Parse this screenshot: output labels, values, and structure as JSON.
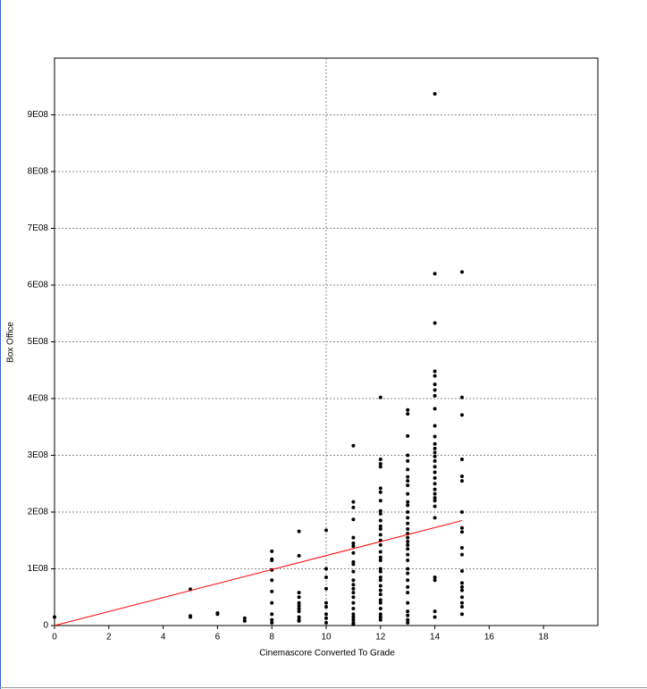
{
  "chart_data": {
    "type": "scatter",
    "xlabel": "Cinemascore Converted To Grade",
    "ylabel": "Box Office",
    "xlim": [
      0,
      20
    ],
    "ylim": [
      0,
      1000000000
    ],
    "xticks": [
      0,
      2,
      4,
      6,
      8,
      10,
      12,
      14,
      16,
      18
    ],
    "yticks": [
      {
        "value": 0,
        "label": "0"
      },
      {
        "value": 100000000,
        "label": "1E08"
      },
      {
        "value": 200000000,
        "label": "2E08"
      },
      {
        "value": 300000000,
        "label": "3E08"
      },
      {
        "value": 400000000,
        "label": "4E08"
      },
      {
        "value": 500000000,
        "label": "5E08"
      },
      {
        "value": 600000000,
        "label": "6E08"
      },
      {
        "value": 700000000,
        "label": "7E08"
      },
      {
        "value": 800000000,
        "label": "8E08"
      },
      {
        "value": 900000000,
        "label": "9E08"
      }
    ],
    "grid": true,
    "vline": 10,
    "color": "#000000",
    "x": [
      0,
      5,
      5,
      5,
      6,
      6,
      7,
      7,
      8,
      8,
      8,
      8,
      8,
      8,
      8,
      8,
      8,
      8,
      9,
      9,
      9,
      9,
      9,
      9,
      9,
      9,
      9,
      9,
      9,
      10,
      10,
      10,
      10,
      10,
      10,
      10,
      10,
      10,
      11,
      11,
      11,
      11,
      11,
      11,
      11,
      11,
      11,
      11,
      11,
      11,
      11,
      11,
      11,
      11,
      11,
      11,
      11,
      11,
      11,
      11,
      11,
      12,
      12,
      12,
      12,
      12,
      12,
      12,
      12,
      12,
      12,
      12,
      12,
      12,
      12,
      12,
      12,
      12,
      12,
      12,
      12,
      12,
      12,
      12,
      12,
      12,
      12,
      12,
      12,
      12,
      12,
      12,
      13,
      13,
      13,
      13,
      13,
      13,
      13,
      13,
      13,
      13,
      13,
      13,
      13,
      13,
      13,
      13,
      13,
      13,
      13,
      13,
      13,
      13,
      13,
      13,
      13,
      13,
      13,
      13,
      13,
      13,
      13,
      13,
      13,
      14,
      14,
      14,
      14,
      14,
      14,
      14,
      14,
      14,
      14,
      14,
      14,
      14,
      14,
      14,
      14,
      14,
      14,
      14,
      14,
      14,
      14,
      14,
      14,
      14,
      14,
      14,
      14,
      14,
      14,
      15,
      15,
      15,
      15,
      15,
      15,
      15,
      15,
      15,
      15,
      15,
      15,
      15,
      15,
      15,
      15,
      15,
      15,
      15
    ],
    "values": [
      15000000.0,
      64000000.0,
      17000000.0,
      15000000.0,
      22000000.0,
      20000000.0,
      13000000.0,
      8000000.0,
      131000000.0,
      117000000.0,
      115000000.0,
      98000000.0,
      80000000.0,
      60000000.0,
      40000000.0,
      20000000.0,
      10000000.0,
      5000000.0,
      166000000.0,
      123000000.0,
      58000000.0,
      50000000.0,
      40000000.0,
      35000000.0,
      30000000.0,
      25000000.0,
      15000000.0,
      10000000.0,
      8000000.0,
      168000000.0,
      100000000.0,
      85000000.0,
      65000000.0,
      40000000.0,
      33000000.0,
      20000000.0,
      13000000.0,
      5000000.0,
      317000000.0,
      218000000.0,
      208000000.0,
      187000000.0,
      155000000.0,
      145000000.0,
      140000000.0,
      128000000.0,
      112000000.0,
      108000000.0,
      95000000.0,
      80000000.0,
      72000000.0,
      65000000.0,
      58000000.0,
      50000000.0,
      40000000.0,
      30000000.0,
      20000000.0,
      15000000.0,
      10000000.0,
      5000000.0,
      2000000.0,
      402000000.0,
      293000000.0,
      285000000.0,
      280000000.0,
      242000000.0,
      235000000.0,
      220000000.0,
      202000000.0,
      197000000.0,
      185000000.0,
      175000000.0,
      170000000.0,
      160000000.0,
      150000000.0,
      142000000.0,
      130000000.0,
      120000000.0,
      115000000.0,
      100000000.0,
      95000000.0,
      85000000.0,
      80000000.0,
      70000000.0,
      62000000.0,
      55000000.0,
      45000000.0,
      40000000.0,
      30000000.0,
      20000000.0,
      15000000.0,
      10000000.0,
      380000000.0,
      373000000.0,
      334000000.0,
      300000000.0,
      290000000.0,
      275000000.0,
      262000000.0,
      255000000.0,
      247000000.0,
      232000000.0,
      218000000.0,
      212000000.0,
      200000000.0,
      190000000.0,
      180000000.0,
      170000000.0,
      162000000.0,
      155000000.0,
      148000000.0,
      142000000.0,
      135000000.0,
      125000000.0,
      115000000.0,
      100000000.0,
      92000000.0,
      80000000.0,
      68000000.0,
      58000000.0,
      40000000.0,
      25000000.0,
      18000000.0,
      10000000.0,
      5000000.0,
      937000000.0,
      620000000.0,
      533000000.0,
      448000000.0,
      440000000.0,
      425000000.0,
      415000000.0,
      405000000.0,
      382000000.0,
      352000000.0,
      333000000.0,
      320000000.0,
      312000000.0,
      305000000.0,
      298000000.0,
      290000000.0,
      280000000.0,
      270000000.0,
      260000000.0,
      250000000.0,
      240000000.0,
      232000000.0,
      225000000.0,
      220000000.0,
      210000000.0,
      190000000.0,
      85000000.0,
      80000000.0,
      25000000.0,
      15000000.0,
      623000000.0,
      402000000.0,
      371000000.0,
      293000000.0,
      263000000.0,
      255000000.0,
      200000000.0,
      172000000.0,
      165000000.0,
      137000000.0,
      125000000.0,
      96000000.0,
      75000000.0,
      68000000.0,
      62000000.0,
      50000000.0,
      40000000.0,
      33000000.0,
      20000000.0
    ],
    "trend_line": {
      "color": "#ff0000",
      "x": [
        0,
        15
      ],
      "values": [
        0,
        185000000
      ]
    }
  }
}
